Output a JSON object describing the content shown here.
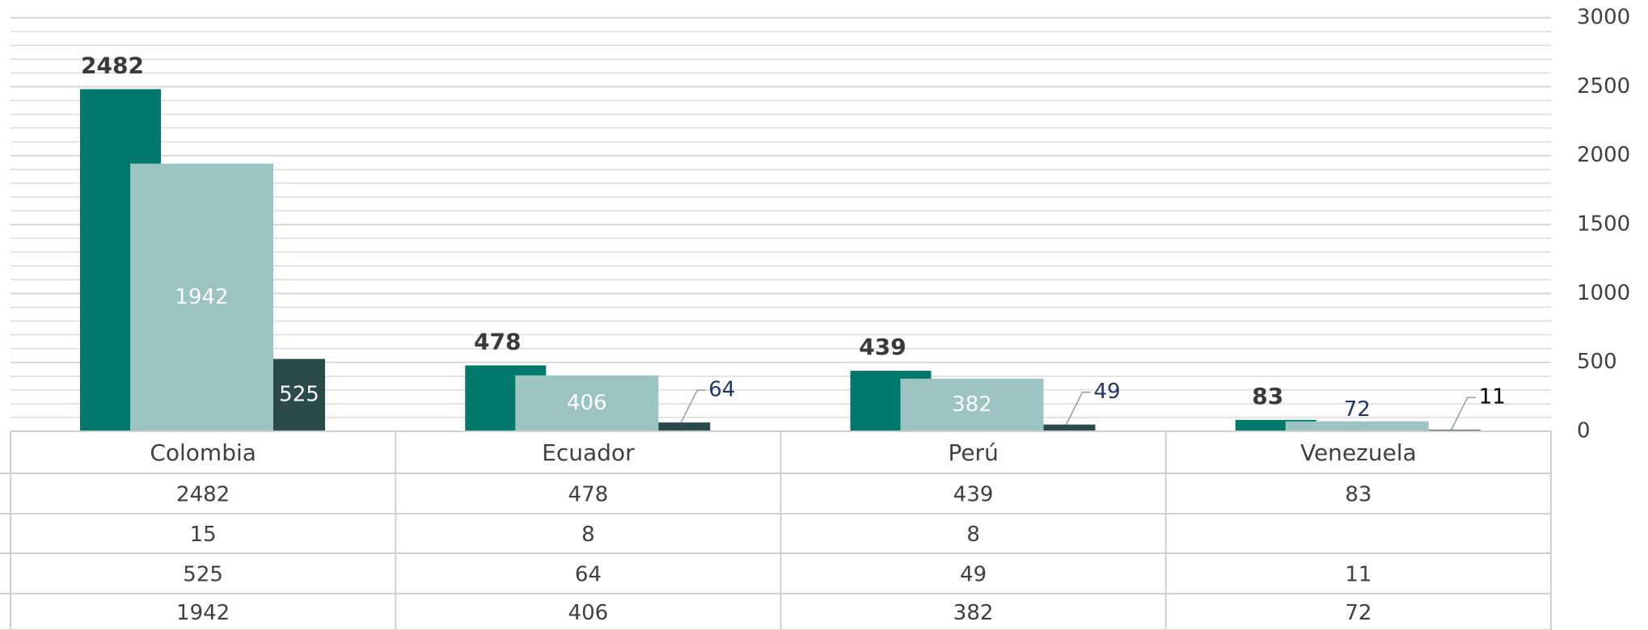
{
  "chart_data": {
    "type": "bar",
    "categories": [
      "Colombia",
      "Ecuador",
      "Perú",
      "Venezuela"
    ],
    "series": [
      {
        "color": "#00786c",
        "values": [
          2482,
          478,
          439,
          83
        ]
      },
      {
        "values": [
          15,
          8,
          8,
          null
        ]
      },
      {
        "color": "#2b4a4a",
        "values": [
          525,
          64,
          49,
          11
        ]
      },
      {
        "color": "#9cc4c3",
        "values": [
          1942,
          406,
          382,
          72
        ]
      }
    ],
    "ylim": [
      0,
      3000
    ],
    "yticks": [
      0,
      500,
      1000,
      1500,
      2000,
      2500,
      3000
    ],
    "yminorticks": [
      0,
      100,
      200,
      300,
      400,
      500,
      600,
      700,
      800,
      900,
      1000,
      1100,
      1200,
      1300,
      1400,
      1500,
      1600,
      1700,
      1800,
      1900,
      2000,
      2100,
      2200,
      2300,
      2400,
      2500,
      2600,
      2700,
      2800,
      2900,
      3000
    ],
    "grid": true,
    "data_table": true
  }
}
